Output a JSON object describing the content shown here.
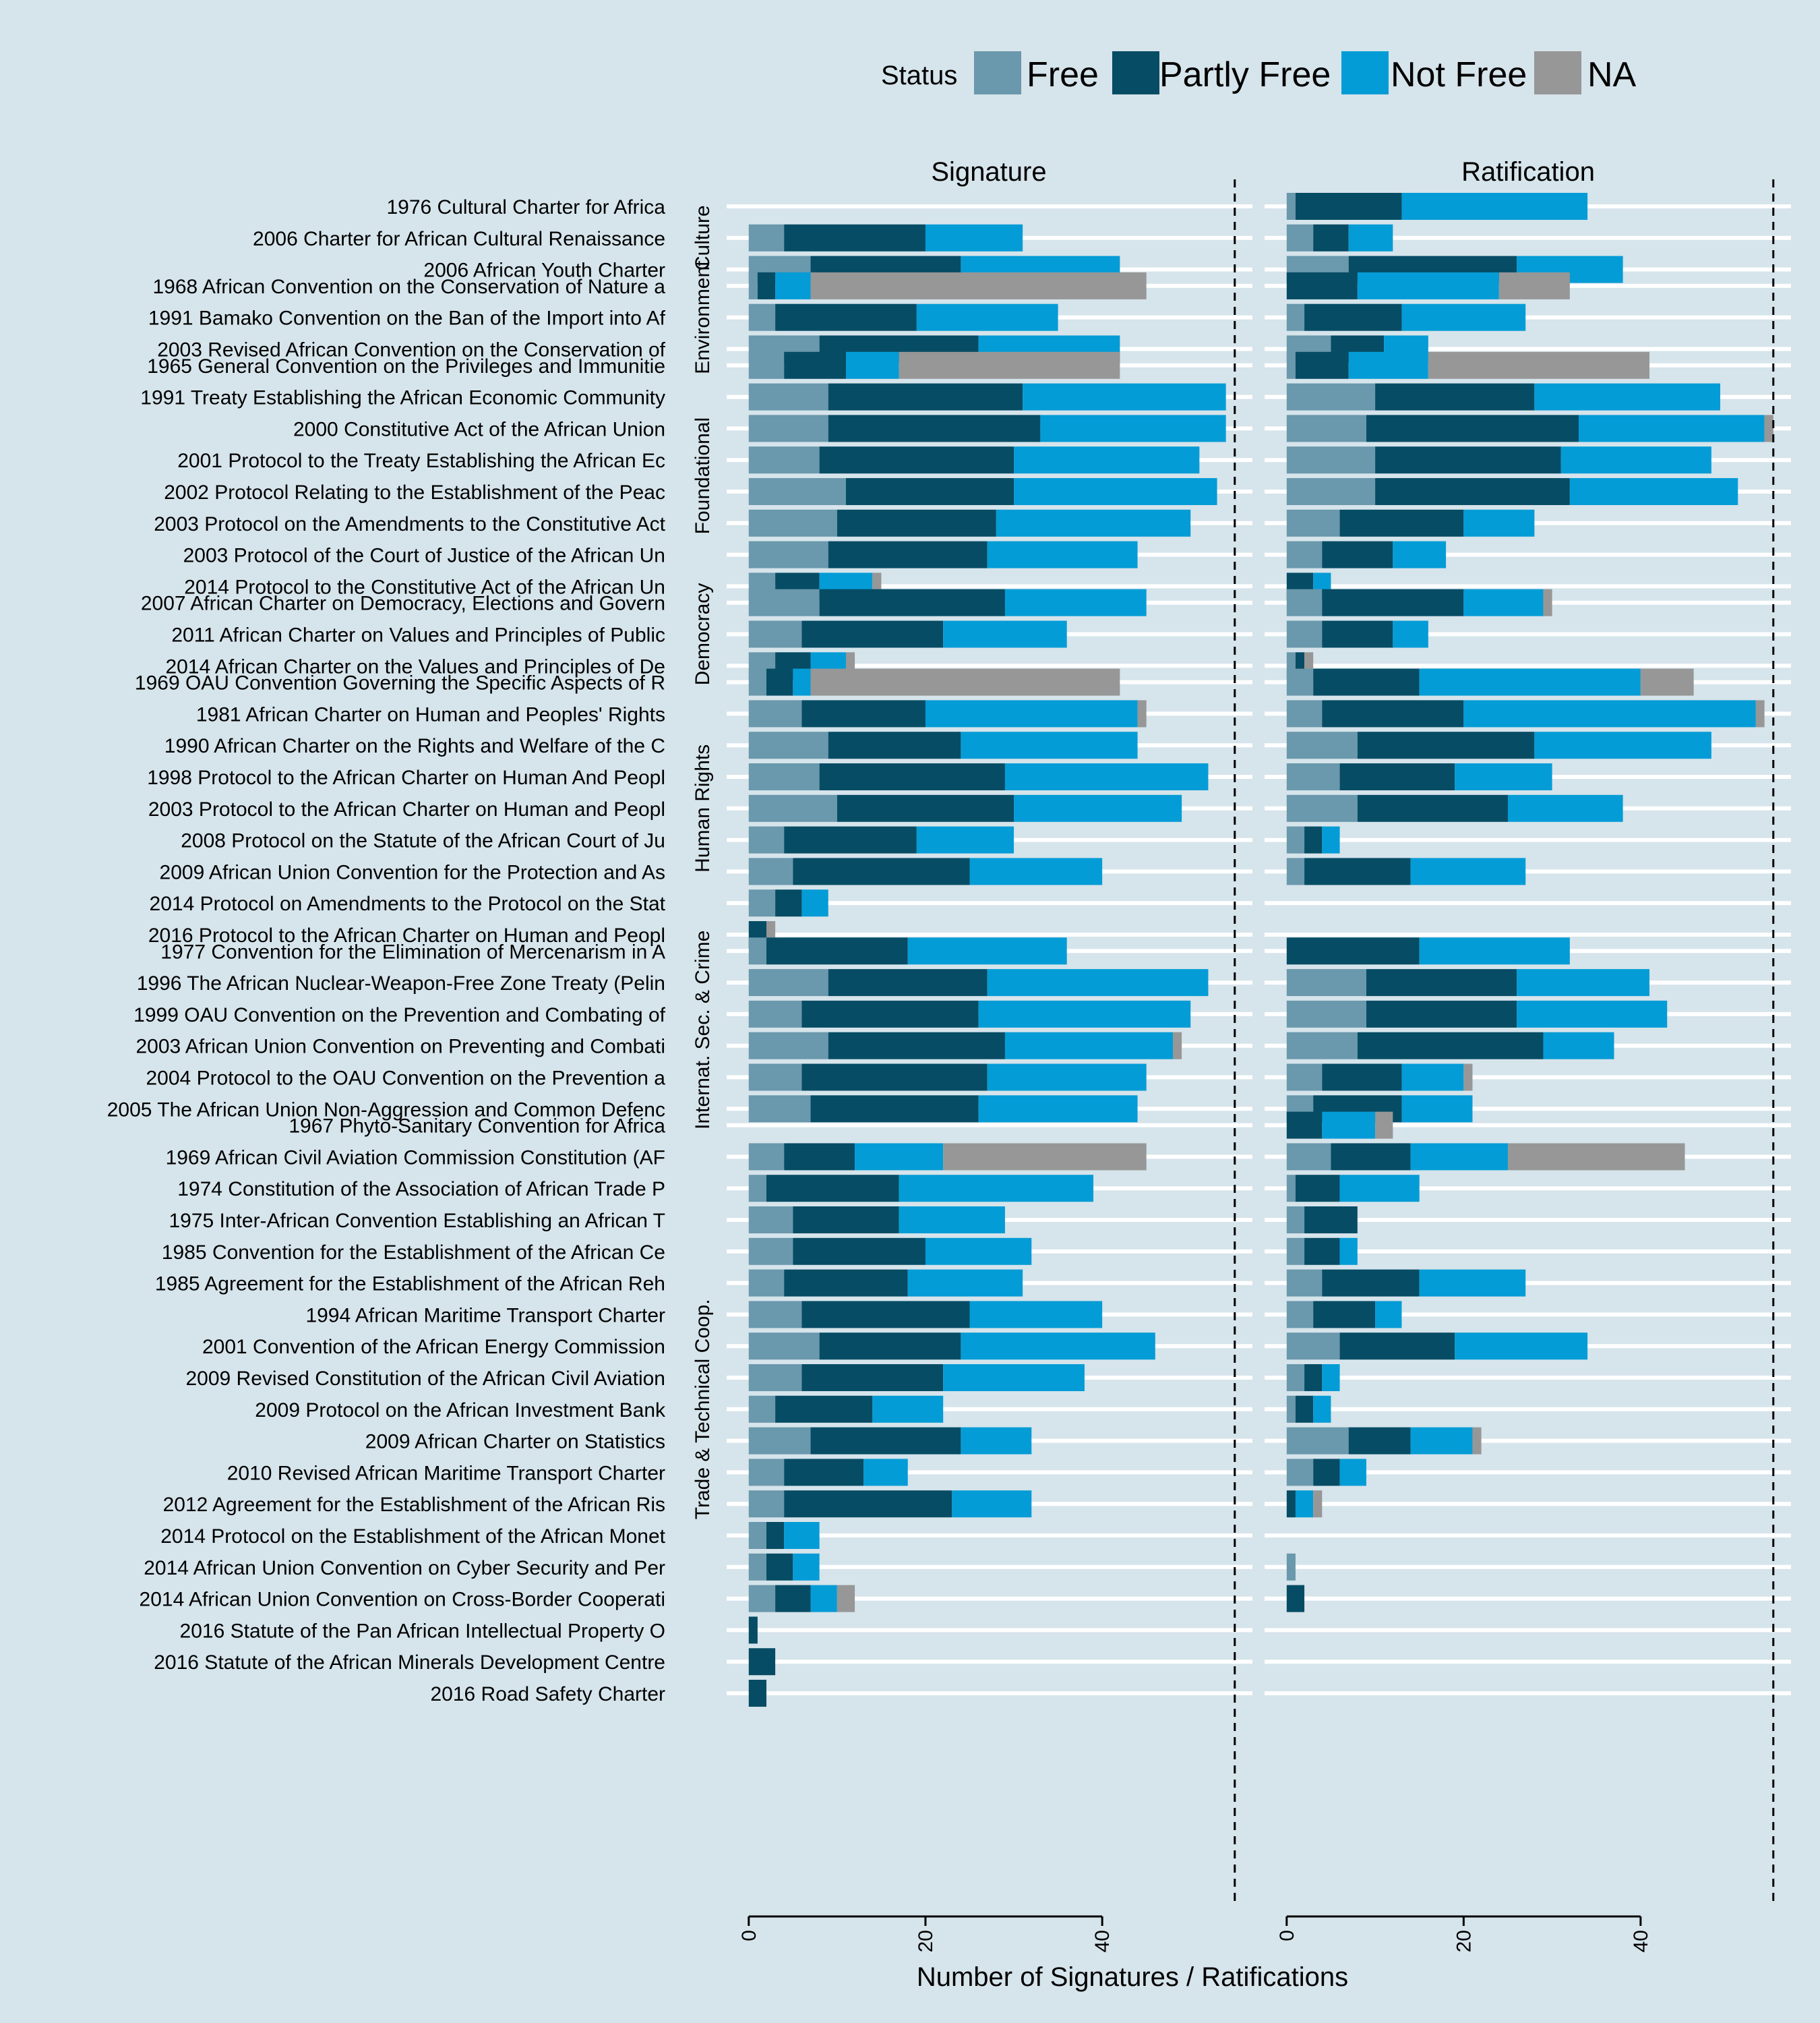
{
  "chart_data": {
    "type": "bar",
    "stacked": true,
    "orientation": "horizontal",
    "legend": {
      "title": "Status",
      "position": "top",
      "items": [
        {
          "name": "Free",
          "color": "#6a98ac"
        },
        {
          "name": "Partly Free",
          "color": "#064c64"
        },
        {
          "name": "Not Free",
          "color": "#049cd6"
        },
        {
          "name": "NA",
          "color": "#979797"
        }
      ]
    },
    "panels": [
      "Signature",
      "Ratification"
    ],
    "xlabel": "Number of Signatures / Ratifications",
    "xticks": [
      "0",
      "20",
      "40"
    ],
    "xlim": [
      -2.5,
      57
    ],
    "reference_line_x": 55,
    "grid": true,
    "groups": [
      {
        "label": "Culture",
        "rows": [
          {
            "label": "1976 Cultural Charter for Africa ",
            "sig": [
              0,
              0,
              0,
              0
            ],
            "rat": [
              1,
              12,
              21,
              0
            ]
          },
          {
            "label": "2006 Charter for African Cultural Renaissance",
            "sig": [
              4,
              16,
              11,
              0
            ],
            "rat": [
              3,
              4,
              5,
              0
            ]
          },
          {
            "label": "2006 African Youth Charter ",
            "sig": [
              7,
              17,
              18,
              0
            ],
            "rat": [
              7,
              19,
              12,
              0
            ]
          }
        ]
      },
      {
        "label": "Environment",
        "rows": [
          {
            "label": "1968 African Convention on the Conservation of Nature a",
            "sig": [
              1,
              2,
              4,
              38
            ],
            "rat": [
              0,
              8,
              16,
              8
            ]
          },
          {
            "label": "1991 Bamako Convention on the Ban of the Import into Af",
            "sig": [
              3,
              16,
              16,
              0
            ],
            "rat": [
              2,
              11,
              14,
              0
            ]
          },
          {
            "label": "2003 Revised African Convention on the Conservation of ",
            "sig": [
              8,
              18,
              16,
              0
            ],
            "rat": [
              5,
              6,
              5,
              0
            ]
          }
        ]
      },
      {
        "label": "Foundational",
        "rows": [
          {
            "label": "1965 General Convention on the Privileges and Immunitie",
            "sig": [
              4,
              7,
              6,
              25
            ],
            "rat": [
              1,
              6,
              9,
              25
            ]
          },
          {
            "label": "1991 Treaty Establishing the African Economic Community",
            "sig": [
              9,
              22,
              23,
              0
            ],
            "rat": [
              10,
              18,
              21,
              0
            ]
          },
          {
            "label": "2000 Constitutive Act of the African Union ",
            "sig": [
              9,
              24,
              21,
              0
            ],
            "rat": [
              9,
              24,
              21,
              1
            ]
          },
          {
            "label": "2001 Protocol to the Treaty Establishing the African Ec",
            "sig": [
              8,
              22,
              21,
              0
            ],
            "rat": [
              10,
              21,
              17,
              0
            ]
          },
          {
            "label": "2002 Protocol Relating to the Establishment of the Peac",
            "sig": [
              11,
              19,
              23,
              0
            ],
            "rat": [
              10,
              22,
              19,
              0
            ]
          },
          {
            "label": "2003 Protocol on the Amendments to the Constitutive Act",
            "sig": [
              10,
              18,
              22,
              0
            ],
            "rat": [
              6,
              14,
              8,
              0
            ]
          },
          {
            "label": "2003 Protocol of the Court of Justice of the African Un",
            "sig": [
              9,
              18,
              17,
              0
            ],
            "rat": [
              4,
              8,
              6,
              0
            ]
          },
          {
            "label": "2014 Protocol to the Constitutive Act of the African Un",
            "sig": [
              3,
              5,
              6,
              1
            ],
            "rat": [
              0,
              3,
              2,
              0
            ]
          }
        ]
      },
      {
        "label": "Democracy",
        "rows": [
          {
            "label": "2007 African Charter on Democracy, Elections and Govern",
            "sig": [
              8,
              21,
              16,
              0
            ],
            "rat": [
              4,
              16,
              9,
              1
            ]
          },
          {
            "label": "2011 African Charter on Values and Principles of Public",
            "sig": [
              6,
              16,
              14,
              0
            ],
            "rat": [
              4,
              8,
              4,
              0
            ]
          },
          {
            "label": "2014 African Charter on the Values and Principles of De",
            "sig": [
              3,
              4,
              4,
              1
            ],
            "rat": [
              1,
              1,
              0,
              1
            ]
          }
        ]
      },
      {
        "label": "Human Rights",
        "rows": [
          {
            "label": "1969 OAU Convention Governing the Specific Aspects of R",
            "sig": [
              2,
              3,
              2,
              35
            ],
            "rat": [
              3,
              12,
              25,
              6
            ]
          },
          {
            "label": "1981 African Charter on Human and Peoples' Rights",
            "sig": [
              6,
              14,
              24,
              1
            ],
            "rat": [
              4,
              16,
              33,
              1
            ]
          },
          {
            "label": "1990 African Charter on the Rights and Welfare of the C",
            "sig": [
              9,
              15,
              20,
              0
            ],
            "rat": [
              8,
              20,
              20,
              0
            ]
          },
          {
            "label": "1998 Protocol to the African Charter on Human And Peopl",
            "sig": [
              8,
              21,
              23,
              0
            ],
            "rat": [
              6,
              13,
              11,
              0
            ]
          },
          {
            "label": "2003 Protocol to the African Charter on Human and Peopl",
            "sig": [
              10,
              20,
              19,
              0
            ],
            "rat": [
              8,
              17,
              13,
              0
            ]
          },
          {
            "label": "2008 Protocol on the Statute of the African Court of Ju",
            "sig": [
              4,
              15,
              11,
              0
            ],
            "rat": [
              2,
              2,
              2,
              0
            ]
          },
          {
            "label": "2009 African Union Convention for the Protection and As",
            "sig": [
              5,
              20,
              15,
              0
            ],
            "rat": [
              2,
              12,
              13,
              0
            ]
          },
          {
            "label": "2014 Protocol on Amendments to the Protocol on the Stat",
            "sig": [
              3,
              3,
              3,
              0
            ],
            "rat": [
              0,
              0,
              0,
              0
            ]
          },
          {
            "label": "2016 Protocol to the African Charter on Human and Peopl",
            "sig": [
              0,
              2,
              0,
              1
            ],
            "rat": [
              0,
              0,
              0,
              0
            ]
          }
        ]
      },
      {
        "label": "Internat. Sec. & Crime",
        "rows": [
          {
            "label": "1977 Convention for the Elimination of Mercenarism in A",
            "sig": [
              2,
              16,
              18,
              0
            ],
            "rat": [
              0,
              15,
              17,
              0
            ]
          },
          {
            "label": "1996 The African Nuclear-Weapon-Free Zone Treaty (Pelin",
            "sig": [
              9,
              18,
              25,
              0
            ],
            "rat": [
              9,
              17,
              15,
              0
            ]
          },
          {
            "label": "1999 OAU Convention on the Prevention and Combating of ",
            "sig": [
              6,
              20,
              24,
              0
            ],
            "rat": [
              9,
              17,
              17,
              0
            ]
          },
          {
            "label": "2003 African Union Convention on Preventing and Combati",
            "sig": [
              9,
              20,
              19,
              1
            ],
            "rat": [
              8,
              21,
              8,
              0
            ]
          },
          {
            "label": "2004 Protocol to the OAU Convention on the Prevention a",
            "sig": [
              6,
              21,
              18,
              0
            ],
            "rat": [
              4,
              9,
              7,
              1
            ]
          },
          {
            "label": "2005 The African Union Non-Aggression and Common Defenc",
            "sig": [
              7,
              19,
              18,
              0
            ],
            "rat": [
              3,
              10,
              8,
              0
            ]
          }
        ]
      },
      {
        "label": "Trade & Technical Coop.",
        "rows": [
          {
            "label": "1967 Phyto-Sanitary Convention for Africa ",
            "sig": [
              0,
              0,
              0,
              0
            ],
            "rat": [
              0,
              4,
              6,
              2
            ]
          },
          {
            "label": "1969 African Civil Aviation Commission Constitution (AF",
            "sig": [
              4,
              8,
              10,
              23
            ],
            "rat": [
              5,
              9,
              11,
              20
            ]
          },
          {
            "label": "1974 Constitution of the Association of African Trade P",
            "sig": [
              2,
              15,
              22,
              0
            ],
            "rat": [
              1,
              5,
              9,
              0
            ]
          },
          {
            "label": "1975 Inter-African Convention Establishing an African T",
            "sig": [
              5,
              12,
              12,
              0
            ],
            "rat": [
              2,
              6,
              0,
              0
            ]
          },
          {
            "label": "1985 Convention for the Establishment of the African Ce",
            "sig": [
              5,
              15,
              12,
              0
            ],
            "rat": [
              2,
              4,
              2,
              0
            ]
          },
          {
            "label": "1985 Agreement for the Establishment of the African Reh",
            "sig": [
              4,
              14,
              13,
              0
            ],
            "rat": [
              4,
              11,
              12,
              0
            ]
          },
          {
            "label": "1994 African Maritime Transport Charter ",
            "sig": [
              6,
              19,
              15,
              0
            ],
            "rat": [
              3,
              7,
              3,
              0
            ]
          },
          {
            "label": "2001 Convention of the African Energy Commission",
            "sig": [
              8,
              16,
              22,
              0
            ],
            "rat": [
              6,
              13,
              15,
              0
            ]
          },
          {
            "label": "2009 Revised Constitution of the African Civil Aviation",
            "sig": [
              6,
              16,
              16,
              0
            ],
            "rat": [
              2,
              2,
              2,
              0
            ]
          },
          {
            "label": "2009 Protocol on the African Investment Bank",
            "sig": [
              3,
              11,
              8,
              0
            ],
            "rat": [
              1,
              2,
              2,
              0
            ]
          },
          {
            "label": "2009 African Charter on Statistics ",
            "sig": [
              7,
              17,
              8,
              0
            ],
            "rat": [
              7,
              7,
              7,
              1
            ]
          },
          {
            "label": "2010 Revised African Maritime Transport Charter",
            "sig": [
              4,
              9,
              5,
              0
            ],
            "rat": [
              3,
              3,
              3,
              0
            ]
          },
          {
            "label": "2012 Agreement for the Establishment of the African Ris",
            "sig": [
              4,
              19,
              9,
              0
            ],
            "rat": [
              0,
              1,
              2,
              1
            ]
          },
          {
            "label": "2014 Protocol on the Establishment of the African Monet",
            "sig": [
              2,
              2,
              4,
              0
            ],
            "rat": [
              0,
              0,
              0,
              0
            ]
          },
          {
            "label": "2014 African Union Convention on Cyber Security and Per",
            "sig": [
              2,
              3,
              3,
              0
            ],
            "rat": [
              1,
              0,
              0,
              0
            ]
          },
          {
            "label": "2014 African Union Convention on Cross-Border Cooperati",
            "sig": [
              3,
              4,
              3,
              2
            ],
            "rat": [
              0,
              2,
              0,
              0
            ]
          },
          {
            "label": "2016 Statute of the Pan African Intellectual Property O",
            "sig": [
              0,
              1,
              0,
              0
            ],
            "rat": [
              0,
              0,
              0,
              0
            ]
          },
          {
            "label": "2016 Statute of the African Minerals Development Centre",
            "sig": [
              0,
              3,
              0,
              0
            ],
            "rat": [
              0,
              0,
              0,
              0
            ]
          },
          {
            "label": "2016 Road Safety Charter ",
            "sig": [
              0,
              2,
              0,
              0
            ],
            "rat": [
              0,
              0,
              0,
              0
            ]
          }
        ]
      }
    ]
  }
}
